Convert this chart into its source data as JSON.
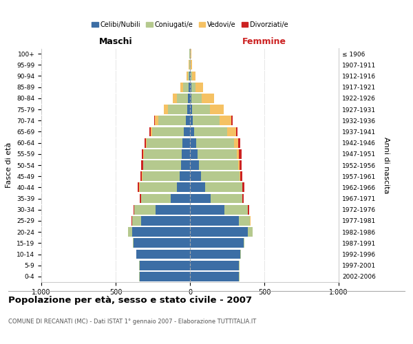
{
  "age_groups": [
    "0-4",
    "5-9",
    "10-14",
    "15-19",
    "20-24",
    "25-29",
    "30-34",
    "35-39",
    "40-44",
    "45-49",
    "50-54",
    "55-59",
    "60-64",
    "65-69",
    "70-74",
    "75-79",
    "80-84",
    "85-89",
    "90-94",
    "95-99",
    "100+"
  ],
  "birth_years": [
    "2002-2006",
    "1997-2001",
    "1992-1996",
    "1987-1991",
    "1982-1986",
    "1977-1981",
    "1972-1976",
    "1967-1971",
    "1962-1966",
    "1957-1961",
    "1952-1956",
    "1947-1951",
    "1942-1946",
    "1937-1941",
    "1932-1936",
    "1927-1931",
    "1922-1926",
    "1917-1921",
    "1912-1916",
    "1907-1911",
    "≤ 1906"
  ],
  "male": {
    "celibi": [
      340,
      340,
      360,
      380,
      390,
      330,
      230,
      130,
      90,
      70,
      60,
      55,
      50,
      40,
      30,
      20,
      15,
      10,
      5,
      2,
      2
    ],
    "coniugati": [
      2,
      2,
      2,
      5,
      25,
      60,
      145,
      200,
      250,
      250,
      255,
      255,
      240,
      215,
      185,
      130,
      75,
      35,
      10,
      3,
      2
    ],
    "vedovi": [
      0,
      0,
      0,
      0,
      1,
      1,
      1,
      1,
      2,
      2,
      2,
      3,
      5,
      10,
      20,
      25,
      25,
      18,
      8,
      3,
      1
    ],
    "divorziati": [
      0,
      0,
      0,
      0,
      1,
      2,
      5,
      8,
      10,
      12,
      13,
      12,
      10,
      8,
      5,
      3,
      2,
      1,
      0,
      0,
      0
    ]
  },
  "female": {
    "nubili": [
      330,
      330,
      340,
      360,
      390,
      330,
      230,
      140,
      100,
      75,
      60,
      50,
      40,
      30,
      20,
      15,
      10,
      8,
      5,
      2,
      2
    ],
    "coniugate": [
      2,
      2,
      2,
      5,
      30,
      75,
      160,
      210,
      250,
      260,
      265,
      265,
      255,
      220,
      180,
      120,
      70,
      30,
      10,
      3,
      2
    ],
    "vedove": [
      0,
      0,
      0,
      0,
      1,
      1,
      1,
      2,
      3,
      5,
      8,
      15,
      30,
      60,
      80,
      90,
      80,
      50,
      20,
      8,
      3
    ],
    "divorziate": [
      0,
      0,
      0,
      0,
      1,
      3,
      6,
      10,
      12,
      14,
      15,
      15,
      12,
      10,
      5,
      4,
      3,
      2,
      1,
      0,
      0
    ]
  },
  "colors": {
    "celibi_nubili": "#3c6ea5",
    "coniugati": "#b5c98e",
    "vedovi": "#f5c163",
    "divorziati": "#cc2222"
  },
  "xlim": 1000,
  "title": "Popolazione per età, sesso e stato civile - 2007",
  "subtitle": "COMUNE DI RECANATI (MC) - Dati ISTAT 1° gennaio 2007 - Elaborazione TUTTITALIA.IT",
  "ylabel_left": "Fasce di età",
  "ylabel_right": "Anni di nascita",
  "xlabel_left": "Maschi",
  "xlabel_right": "Femmine"
}
